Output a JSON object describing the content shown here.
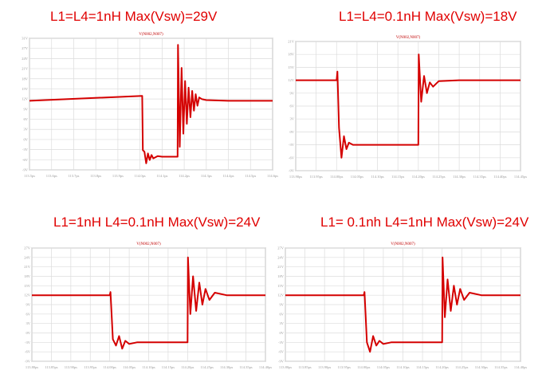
{
  "colors": {
    "trace": "#d40000",
    "heading": "#e00000",
    "grid": "#dcdcdc",
    "frame": "#8a8a8a"
  },
  "chart_data": [
    {
      "type": "line",
      "heading": "L1=L4=1nH Max(Vsw)=29V",
      "title": "V(N002,N007)",
      "x_tick_labels": [
        "113.5ps",
        "113.6ps",
        "113.7ps",
        "113.8ps",
        "113.9ps",
        "114.0ps",
        "114.1ps",
        "114.2ps",
        "114.3ps",
        "114.4ps",
        "114.5ps",
        "114.6ps"
      ],
      "y_tick_labels": [
        "31V",
        "27V",
        "24V",
        "21V",
        "18V",
        "15V",
        "12V",
        "9V",
        "6V",
        "3V",
        "0V",
        "-3V",
        "-6V",
        "-9V"
      ],
      "ylim": [
        -9,
        31
      ],
      "xlim": [
        113.5,
        114.6
      ],
      "series": [
        {
          "x": [
            113.5,
            114.01,
            114.013,
            114.02,
            114.028,
            114.036,
            114.044,
            114.052,
            114.06,
            114.08,
            114.1,
            114.17,
            114.172,
            114.18,
            114.188,
            114.196,
            114.204,
            114.212,
            114.22,
            114.228,
            114.236,
            114.244,
            114.252,
            114.26,
            114.268,
            114.28,
            114.3,
            114.4,
            114.6
          ],
          "y": [
            12,
            13.5,
            -3,
            -3.5,
            -7,
            -4,
            -6,
            -4.5,
            -5.5,
            -4.8,
            -5,
            -5,
            29,
            -2,
            22,
            2,
            18,
            5,
            16,
            7,
            15,
            9,
            14,
            10.5,
            13,
            12.5,
            12.2,
            12,
            12
          ]
        }
      ]
    },
    {
      "type": "line",
      "heading": "L1=L4=0.1nH Max(Vsw)=18V",
      "title": "V(N002,N007)",
      "x_tick_labels": [
        "113.90ps",
        "113.95ps",
        "114.00ps",
        "114.05ps",
        "114.10ps",
        "114.15ps",
        "114.20ps",
        "114.25ps",
        "114.30ps",
        "114.35ps",
        "114.40ps",
        "114.45ps"
      ],
      "y_tick_labels": [
        "21V",
        "18V",
        "15V",
        "12V",
        "9V",
        "6V",
        "3V",
        "0V",
        "-3V",
        "-6V",
        "-9V"
      ],
      "ylim": [
        -9,
        21
      ],
      "xlim": [
        113.9,
        114.45
      ],
      "series": [
        {
          "x": [
            113.9,
            114.0,
            114.002,
            114.006,
            114.012,
            114.018,
            114.024,
            114.03,
            114.04,
            114.06,
            114.1,
            114.2,
            114.201,
            114.207,
            114.214,
            114.221,
            114.228,
            114.236,
            114.25,
            114.3,
            114.45
          ],
          "y": [
            12,
            12,
            14,
            1,
            -6,
            -1,
            -4,
            -2.5,
            -3,
            -3,
            -3,
            -3,
            18,
            7,
            13,
            9,
            11.5,
            10.5,
            11.8,
            12,
            12
          ]
        }
      ]
    },
    {
      "type": "line",
      "heading": "L1=1nH L4=0.1nH Max(Vsw)=24V",
      "title": "V(N002,N007)",
      "x_tick_labels": [
        "113.80ps",
        "113.85ps",
        "113.90ps",
        "113.95ps",
        "114.00ps",
        "114.05ps",
        "114.10ps",
        "114.15ps",
        "114.20ps",
        "114.25ps",
        "114.30ps",
        "114.35ps",
        "114.40ps"
      ],
      "y_tick_labels": [
        "27V",
        "24V",
        "21V",
        "18V",
        "15V",
        "12V",
        "9V",
        "6V",
        "3V",
        "0V",
        "-3V",
        "-6V",
        "-9V"
      ],
      "ylim": [
        -9,
        27
      ],
      "xlim": [
        113.8,
        114.4
      ],
      "series": [
        {
          "x": [
            113.8,
            114.0,
            114.002,
            114.008,
            114.016,
            114.024,
            114.032,
            114.04,
            114.05,
            114.07,
            114.1,
            114.2,
            114.201,
            114.207,
            114.214,
            114.222,
            114.23,
            114.238,
            114.246,
            114.256,
            114.27,
            114.3,
            114.4
          ],
          "y": [
            12,
            12,
            13,
            -2,
            -4,
            -1,
            -5,
            -2.5,
            -3.5,
            -3,
            -3,
            -3,
            24,
            6,
            18,
            7,
            16,
            9,
            14,
            10.5,
            12.8,
            12,
            12
          ]
        }
      ]
    },
    {
      "type": "line",
      "heading": "L1= 0.1nh L4=1nH Max(Vsw)=24V",
      "title": "V(N002,N007)",
      "x_tick_labels": [
        "113.80ps",
        "113.85ps",
        "113.90ps",
        "113.95ps",
        "114.00ps",
        "114.05ps",
        "114.10ps",
        "114.15ps",
        "114.20ps",
        "114.25ps",
        "114.30ps",
        "114.35ps",
        "114.40ps"
      ],
      "y_tick_labels": [
        "27V",
        "24V",
        "21V",
        "18V",
        "15V",
        "12V",
        "9V",
        "6V",
        "3V",
        "0V",
        "-3V",
        "-6V",
        "-9V"
      ],
      "ylim": [
        -9,
        27
      ],
      "xlim": [
        113.8,
        114.4
      ],
      "series": [
        {
          "x": [
            113.8,
            114.0,
            114.002,
            114.008,
            114.016,
            114.024,
            114.032,
            114.04,
            114.05,
            114.07,
            114.1,
            114.2,
            114.201,
            114.207,
            114.214,
            114.222,
            114.23,
            114.238,
            114.246,
            114.256,
            114.27,
            114.3,
            114.4
          ],
          "y": [
            12,
            12,
            13,
            -3,
            -6,
            -1,
            -4,
            -2.5,
            -3.5,
            -3,
            -3,
            -3,
            24,
            5,
            17,
            7,
            15,
            9,
            14,
            10.5,
            12.8,
            12,
            12
          ]
        }
      ]
    }
  ]
}
